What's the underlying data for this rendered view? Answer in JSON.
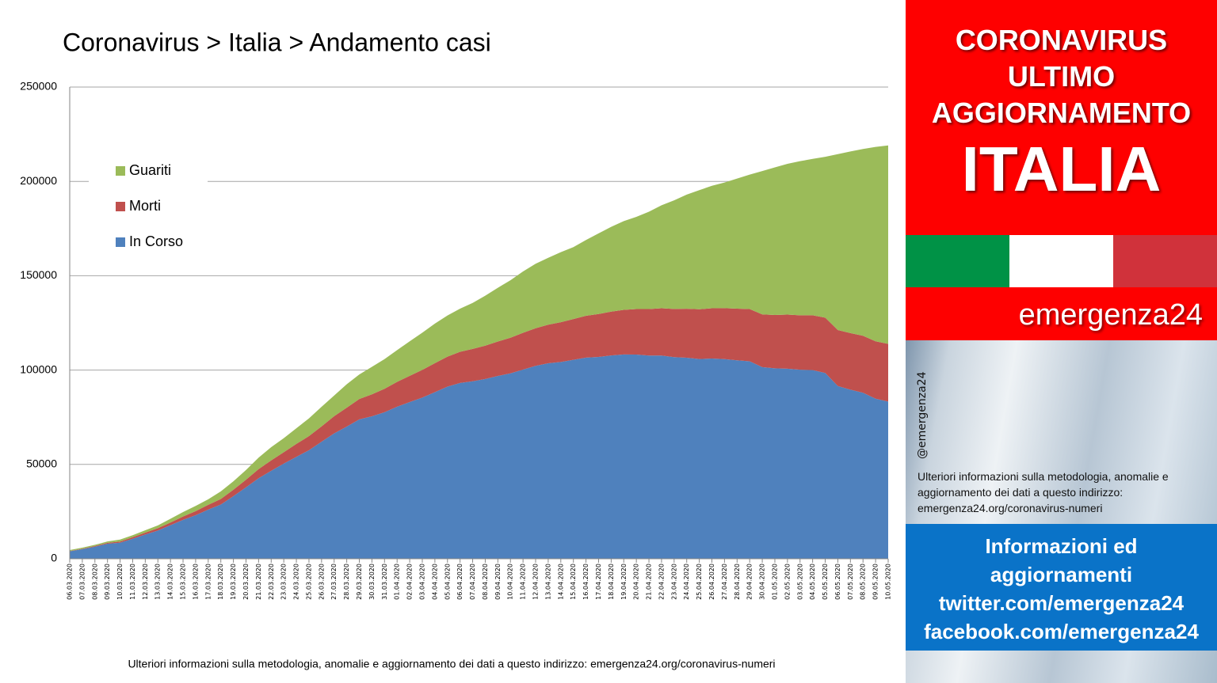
{
  "chart_data": {
    "type": "stacked-area",
    "title": "Coronavirus > Italia > Andamento casi",
    "note": "Ulteriori informazioni sulla metodologia, anomalie e aggiornamento dei dati a questo indirizzo: emergenza24.org/coronavirus-numeri",
    "categories": [
      "06.03.2020",
      "07.03.2020",
      "08.03.2020",
      "09.03.2020",
      "10.03.2020",
      "11.03.2020",
      "12.03.2020",
      "13.03.2020",
      "14.03.2020",
      "15.03.2020",
      "16.03.2020",
      "17.03.2020",
      "18.03.2020",
      "19.03.2020",
      "20.03.2020",
      "21.03.2020",
      "22.03.2020",
      "23.03.2020",
      "24.03.2020",
      "25.03.2020",
      "26.03.2020",
      "27.03.2020",
      "28.03.2020",
      "29.03.2020",
      "30.03.2020",
      "31.03.2020",
      "01.04.2020",
      "02.04.2020",
      "03.04.2020",
      "04.04.2020",
      "05.04.2020",
      "06.04.2020",
      "07.04.2020",
      "08.04.2020",
      "09.04.2020",
      "10.04.2020",
      "11.04.2020",
      "12.04.2020",
      "13.04.2020",
      "14.04.2020",
      "15.04.2020",
      "16.04.2020",
      "17.04.2020",
      "18.04.2020",
      "19.04.2020",
      "20.04.2020",
      "21.04.2020",
      "22.04.2020",
      "23.04.2020",
      "24.04.2020",
      "25.04.2020",
      "26.04.2020",
      "27.04.2020",
      "28.04.2020",
      "29.04.2020",
      "30.04.2020",
      "01.05.2020",
      "02.05.2020",
      "03.05.2020",
      "04.05.2020",
      "05.05.2020",
      "06.05.2020",
      "07.05.2020",
      "08.05.2020",
      "09.05.2020",
      "10.05.2020"
    ],
    "series": [
      {
        "name": "In Corso",
        "color": "#4f81bd",
        "values": [
          3916,
          5061,
          6387,
          7985,
          8514,
          10590,
          12839,
          14955,
          17750,
          20603,
          23073,
          26062,
          28710,
          33190,
          37860,
          42681,
          46638,
          50418,
          54030,
          57521,
          62013,
          66414,
          70065,
          73880,
          75528,
          77635,
          80572,
          83049,
          85388,
          88274,
          91246,
          93187,
          94067,
          95262,
          96877,
          98273,
          100269,
          102253,
          103616,
          104291,
          105418,
          106607,
          106962,
          107771,
          108257,
          108237,
          107709,
          107699,
          106848,
          106527,
          105847,
          106103,
          105813,
          105205,
          104657,
          101551,
          100943,
          100704,
          100179,
          99980,
          98467,
          91528,
          89624,
          87961,
          84842,
          83324
        ]
      },
      {
        "name": "Morti",
        "color": "#c0504d",
        "values": [
          197,
          233,
          366,
          463,
          631,
          827,
          1016,
          1266,
          1441,
          1809,
          2158,
          2503,
          2978,
          3405,
          4032,
          4825,
          5476,
          6077,
          6820,
          7503,
          8165,
          9134,
          10023,
          10779,
          11591,
          12428,
          13155,
          13915,
          14681,
          15362,
          15887,
          16523,
          17127,
          17669,
          18279,
          18849,
          19468,
          19899,
          20465,
          21067,
          21645,
          22170,
          22745,
          23227,
          23660,
          24114,
          24648,
          25085,
          25549,
          25969,
          26384,
          26644,
          26977,
          27359,
          27682,
          27967,
          28236,
          28710,
          28884,
          29079,
          29315,
          29684,
          29958,
          30201,
          30395,
          30560
        ]
      },
      {
        "name": "Guariti",
        "color": "#9bbb59",
        "values": [
          523,
          589,
          622,
          724,
          1004,
          1045,
          1258,
          1439,
          1966,
          2335,
          2749,
          2941,
          4025,
          4440,
          5129,
          6072,
          7024,
          7432,
          8326,
          9362,
          10361,
          10950,
          12384,
          13030,
          14620,
          15729,
          16847,
          18278,
          19758,
          20996,
          21815,
          22837,
          24392,
          26491,
          28470,
          30455,
          32534,
          34211,
          35435,
          37130,
          38092,
          40164,
          42727,
          44927,
          47055,
          48877,
          51600,
          54543,
          57576,
          60498,
          63120,
          64928,
          66624,
          68941,
          71252,
          75945,
          78249,
          79914,
          81654,
          82879,
          85231,
          93245,
          96276,
          99023,
          103031,
          105186
        ]
      }
    ],
    "ylim": [
      0,
      250000
    ],
    "yticks": [
      0,
      50000,
      100000,
      150000,
      200000,
      250000
    ],
    "grid": true,
    "legend": "upper-left"
  },
  "sidebar": {
    "header": [
      "CORONAVIRUS",
      "ULTIMO",
      "AGGIORNAMENTO"
    ],
    "country": "ITALIA",
    "brand": "emergenza24",
    "handle": "@emergenza24",
    "info": "Ulteriori informazioni sulla metodologia, anomalie e aggiornamento dei dati a questo indirizzo: emergenza24.org/coronavirus-numeri",
    "links": [
      "Informazioni ed",
      "aggiornamenti",
      "twitter.com/emergenza24",
      "facebook.com/emergenza24"
    ]
  }
}
